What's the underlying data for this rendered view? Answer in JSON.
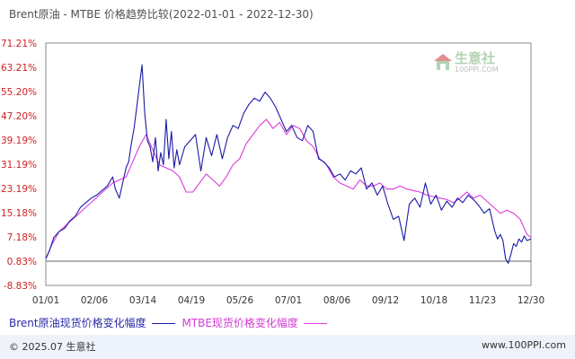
{
  "title": "Brent原油 - MTBE 价格趋势比较(2022-01-01 - 2022-12-30)",
  "legend": {
    "brent_label": "Brent原油现货价格变化幅度",
    "mtbe_label": "MTBE现货价格变化幅度"
  },
  "watermark": {
    "name": "生意社",
    "url": "100PPI.COM"
  },
  "footer": {
    "copyright": "© 2025.07 生意社",
    "url": "www.100PPI.com"
  },
  "colors": {
    "brent": "#1a1aa6",
    "mtbe": "#d93ad9",
    "ytick": "#cc2222",
    "grid": "#cfcfcf",
    "axis": "#888888"
  },
  "chart_data": {
    "type": "line",
    "title": "Brent原油 - MTBE 价格趋势比较(2022-01-01 - 2022-12-30)",
    "xlabel": "",
    "ylabel": "",
    "x_ticks": [
      "01/01",
      "02/06",
      "03/14",
      "04/19",
      "05/26",
      "07/01",
      "08/06",
      "09/12",
      "10/18",
      "11/23",
      "12/30"
    ],
    "y_ticks": [
      "71.21%",
      "63.21%",
      "55.20%",
      "47.20%",
      "39.19%",
      "31.19%",
      "23.19%",
      "15.18%",
      "7.18%",
      "0.83%",
      "-8.83%"
    ],
    "ylim": [
      -8.83,
      71.21
    ],
    "x_unit": "days since 2022-01-01",
    "xlim": [
      0,
      363
    ],
    "grid": true,
    "legend_position": "bottom",
    "series": [
      {
        "name": "Brent原油现货价格变化幅度",
        "color": "#1a1aa6",
        "x": [
          0,
          3,
          6,
          10,
          14,
          18,
          22,
          26,
          30,
          34,
          38,
          42,
          46,
          50,
          52,
          55,
          58,
          60,
          62,
          64,
          66,
          68,
          70,
          72,
          74,
          76,
          78,
          80,
          82,
          84,
          86,
          88,
          90,
          92,
          94,
          96,
          98,
          100,
          104,
          108,
          112,
          116,
          120,
          124,
          128,
          132,
          136,
          140,
          144,
          148,
          152,
          156,
          160,
          164,
          168,
          172,
          176,
          180,
          184,
          188,
          192,
          196,
          200,
          204,
          208,
          212,
          216,
          220,
          224,
          228,
          232,
          236,
          240,
          244,
          248,
          252,
          256,
          260,
          264,
          268,
          272,
          276,
          280,
          284,
          288,
          292,
          296,
          300,
          304,
          308,
          312,
          316,
          320,
          324,
          328,
          332,
          336,
          338,
          340,
          342,
          344,
          346,
          348,
          350,
          352,
          354,
          356,
          358,
          360,
          363
        ],
        "y": [
          0.0,
          3.0,
          7.0,
          9.0,
          10.0,
          12.5,
          14.0,
          17.0,
          18.5,
          20.0,
          21.0,
          22.5,
          24.0,
          27.0,
          23.0,
          20.0,
          26.0,
          30.0,
          32.0,
          38.0,
          43.0,
          50.0,
          57.0,
          64.0,
          48.0,
          39.0,
          37.0,
          32.0,
          40.0,
          29.0,
          35.0,
          31.0,
          46.0,
          33.0,
          42.0,
          30.0,
          36.0,
          31.0,
          37.0,
          39.0,
          41.0,
          29.0,
          40.0,
          34.0,
          41.0,
          33.0,
          40.0,
          44.0,
          43.0,
          48.0,
          51.0,
          53.0,
          52.0,
          55.0,
          53.0,
          50.0,
          46.0,
          42.0,
          44.0,
          40.0,
          39.0,
          44.0,
          42.0,
          33.0,
          32.0,
          30.0,
          27.0,
          28.0,
          26.0,
          29.0,
          28.0,
          30.0,
          23.0,
          25.0,
          21.0,
          24.0,
          18.0,
          13.0,
          14.0,
          6.0,
          18.0,
          20.0,
          17.0,
          25.0,
          18.0,
          21.0,
          16.0,
          19.0,
          17.0,
          20.0,
          18.5,
          21.0,
          19.5,
          17.5,
          15.0,
          16.5,
          9.0,
          6.5,
          8.0,
          6.0,
          0.0,
          -1.5,
          1.5,
          5.0,
          4.0,
          6.5,
          5.5,
          7.5,
          6.0,
          6.5
        ]
      },
      {
        "name": "MTBE现货价格变化幅度",
        "color": "#d93ad9",
        "x": [
          0,
          5,
          10,
          15,
          20,
          25,
          30,
          35,
          40,
          45,
          50,
          55,
          60,
          65,
          70,
          75,
          80,
          85,
          90,
          95,
          100,
          105,
          110,
          115,
          120,
          125,
          130,
          135,
          140,
          145,
          150,
          155,
          160,
          165,
          170,
          175,
          180,
          185,
          190,
          195,
          200,
          205,
          210,
          215,
          220,
          225,
          230,
          235,
          240,
          245,
          250,
          255,
          260,
          265,
          270,
          275,
          280,
          285,
          290,
          295,
          300,
          305,
          310,
          315,
          320,
          325,
          330,
          335,
          340,
          345,
          350,
          355,
          360,
          363
        ],
        "y": [
          0.0,
          5.0,
          9.0,
          11.0,
          13.0,
          15.0,
          17.0,
          19.0,
          21.0,
          23.0,
          25.0,
          26.0,
          27.0,
          32.0,
          37.0,
          41.0,
          36.0,
          31.0,
          30.0,
          29.0,
          27.0,
          22.0,
          22.0,
          25.0,
          28.0,
          26.0,
          24.0,
          27.0,
          31.0,
          33.0,
          38.0,
          41.0,
          44.0,
          46.0,
          43.0,
          45.0,
          41.0,
          44.0,
          43.0,
          39.0,
          37.0,
          33.0,
          31.0,
          27.0,
          25.0,
          24.0,
          23.0,
          26.0,
          24.0,
          24.0,
          25.0,
          23.0,
          23.0,
          24.0,
          23.0,
          22.5,
          22.0,
          21.0,
          20.5,
          20.0,
          19.5,
          18.5,
          20.0,
          22.0,
          20.0,
          21.0,
          19.0,
          17.0,
          15.0,
          16.0,
          15.0,
          13.0,
          8.0,
          7.0
        ]
      }
    ]
  }
}
